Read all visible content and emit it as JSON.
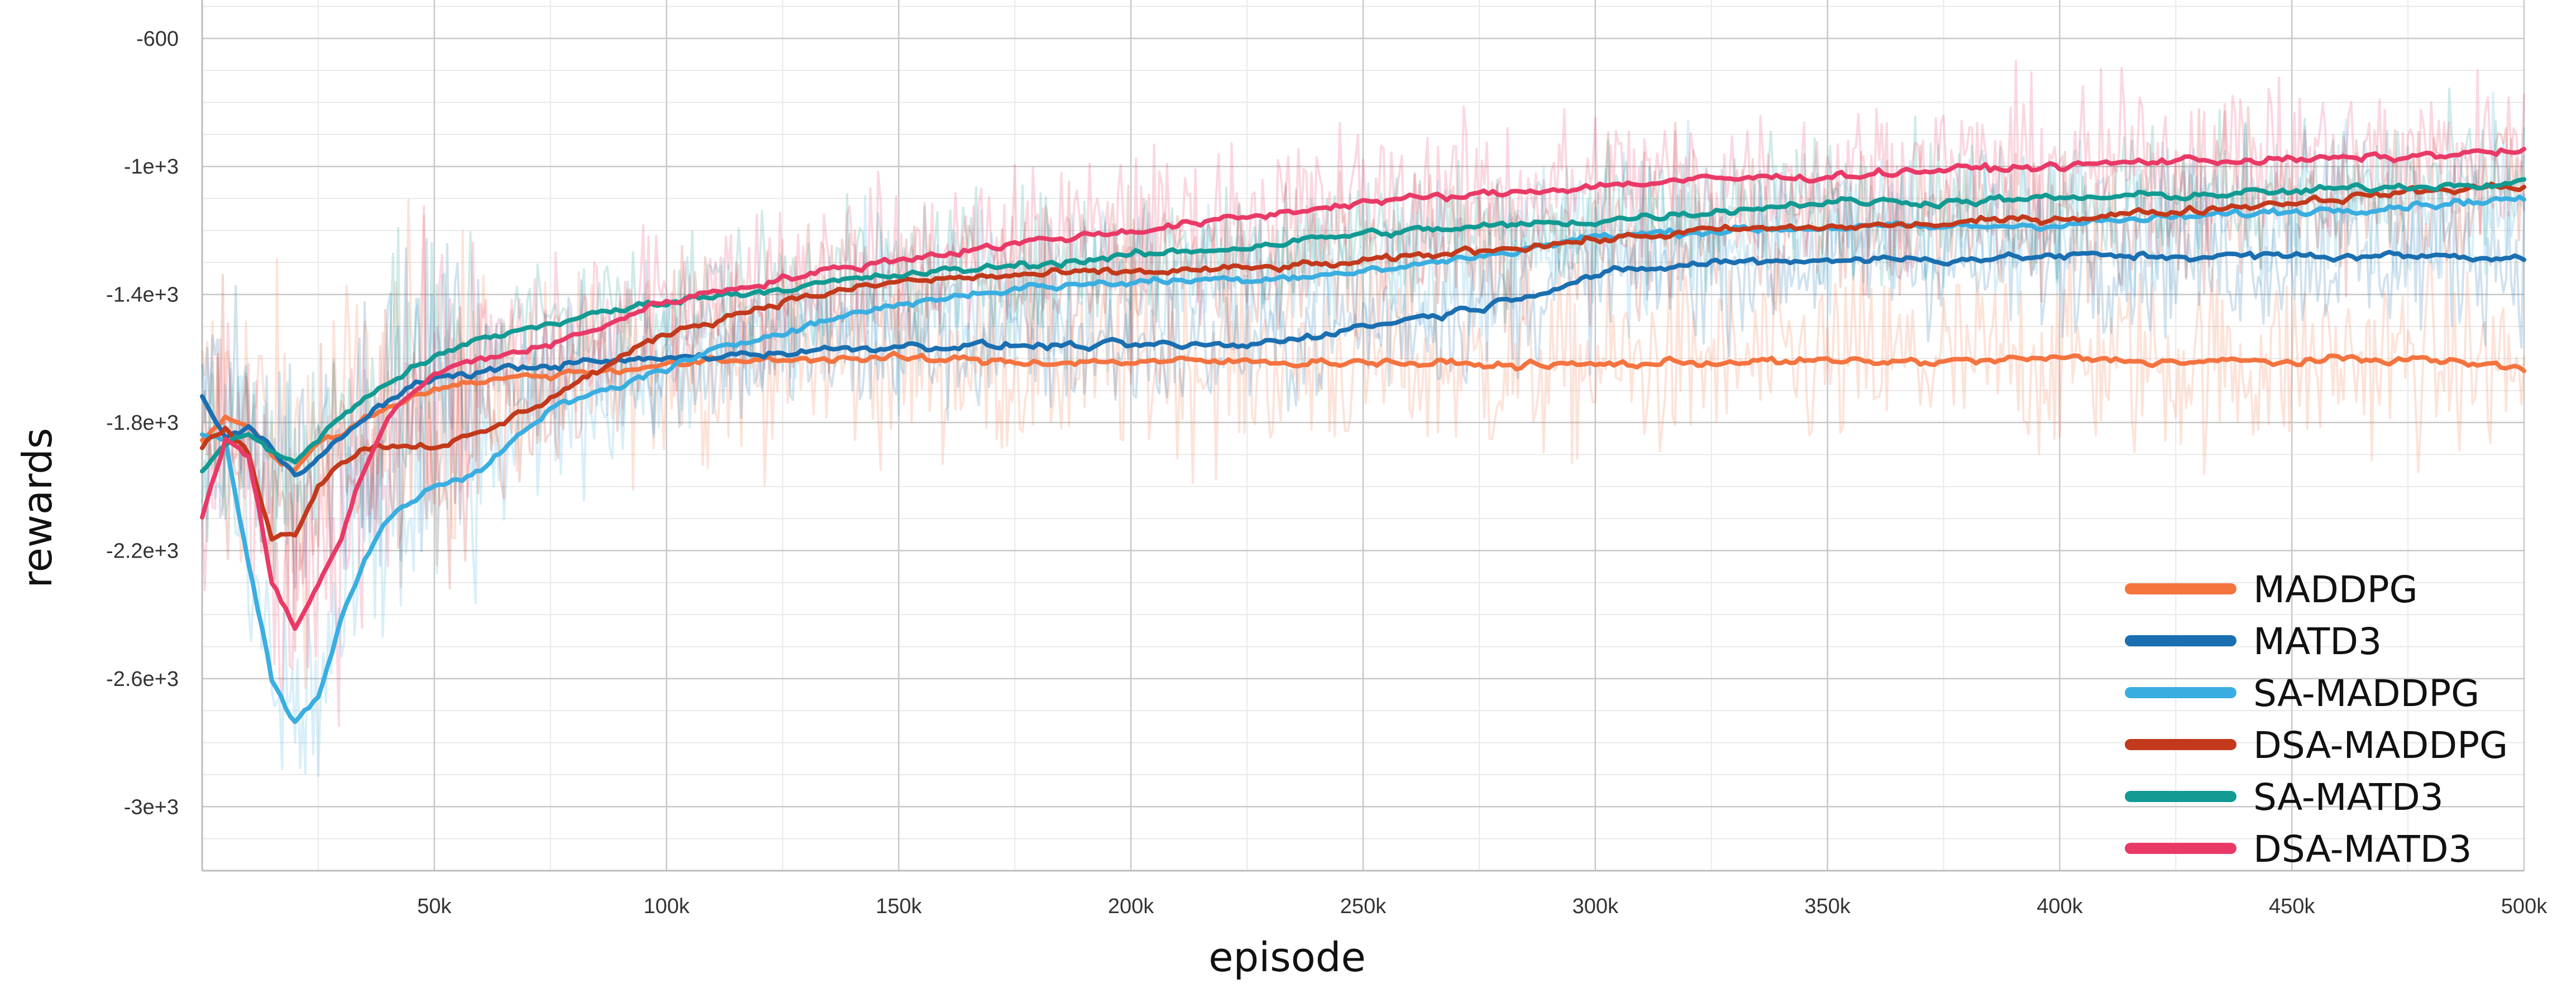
{
  "chart_data": {
    "type": "line",
    "title": "",
    "xlabel": "episode",
    "ylabel": "rewards",
    "xlim": [
      0,
      500000
    ],
    "ylim": [
      -3200,
      -480
    ],
    "x_ticks": [
      {
        "value": 50000,
        "label": "50k"
      },
      {
        "value": 100000,
        "label": "100k"
      },
      {
        "value": 150000,
        "label": "150k"
      },
      {
        "value": 200000,
        "label": "200k"
      },
      {
        "value": 250000,
        "label": "250k"
      },
      {
        "value": 300000,
        "label": "300k"
      },
      {
        "value": 350000,
        "label": "350k"
      },
      {
        "value": 400000,
        "label": "400k"
      },
      {
        "value": 450000,
        "label": "450k"
      },
      {
        "value": 500000,
        "label": "500k"
      }
    ],
    "y_ticks": [
      {
        "value": -600,
        "label": "-600"
      },
      {
        "value": -1000,
        "label": "-1e+3"
      },
      {
        "value": -1400,
        "label": "-1.4e+3"
      },
      {
        "value": -1800,
        "label": "-1.8e+3"
      },
      {
        "value": -2200,
        "label": "-2.2e+3"
      },
      {
        "value": -2600,
        "label": "-2.6e+3"
      },
      {
        "value": -3000,
        "label": "-3e+3"
      }
    ],
    "grid": true,
    "legend_position": "bottom-right",
    "x": [
      0,
      5000,
      10000,
      15000,
      20000,
      25000,
      30000,
      35000,
      40000,
      50000,
      60000,
      75000,
      100000,
      125000,
      150000,
      175000,
      200000,
      225000,
      250000,
      275000,
      300000,
      325000,
      350000,
      375000,
      400000,
      425000,
      450000,
      475000,
      500000
    ],
    "series": [
      {
        "name": "MADDPG",
        "color": "#f4733f",
        "values": [
          -1850,
          -1780,
          -1800,
          -1900,
          -1950,
          -1870,
          -1830,
          -1790,
          -1750,
          -1690,
          -1670,
          -1650,
          -1620,
          -1600,
          -1600,
          -1610,
          -1610,
          -1610,
          -1610,
          -1620,
          -1620,
          -1610,
          -1610,
          -1610,
          -1600,
          -1610,
          -1610,
          -1600,
          -1630
        ]
      },
      {
        "name": "MATD3",
        "color": "#1a6fb0",
        "values": [
          -1720,
          -1850,
          -1820,
          -1880,
          -1960,
          -1900,
          -1850,
          -1790,
          -1730,
          -1660,
          -1640,
          -1620,
          -1600,
          -1580,
          -1560,
          -1560,
          -1560,
          -1560,
          -1500,
          -1440,
          -1340,
          -1300,
          -1290,
          -1290,
          -1280,
          -1280,
          -1280,
          -1280,
          -1280
        ]
      },
      {
        "name": "SA-MADDPG",
        "color": "#3aaee0",
        "values": [
          -1850,
          -1850,
          -2250,
          -2600,
          -2740,
          -2650,
          -2420,
          -2230,
          -2100,
          -1990,
          -1950,
          -1760,
          -1630,
          -1510,
          -1430,
          -1380,
          -1360,
          -1350,
          -1330,
          -1280,
          -1220,
          -1200,
          -1190,
          -1190,
          -1180,
          -1160,
          -1140,
          -1120,
          -1100
        ]
      },
      {
        "name": "DSA-MADDPG",
        "color": "#c2391c",
        "values": [
          -1880,
          -1820,
          -1900,
          -2150,
          -2150,
          -1990,
          -1920,
          -1880,
          -1870,
          -1870,
          -1840,
          -1720,
          -1520,
          -1420,
          -1360,
          -1340,
          -1330,
          -1320,
          -1300,
          -1260,
          -1230,
          -1200,
          -1190,
          -1180,
          -1160,
          -1140,
          -1110,
          -1080,
          -1060
        ]
      },
      {
        "name": "SA-MATD3",
        "color": "#129a93",
        "values": [
          -1950,
          -1870,
          -1830,
          -1900,
          -1920,
          -1850,
          -1780,
          -1730,
          -1670,
          -1600,
          -1540,
          -1490,
          -1420,
          -1380,
          -1340,
          -1310,
          -1280,
          -1250,
          -1210,
          -1190,
          -1170,
          -1140,
          -1110,
          -1110,
          -1100,
          -1090,
          -1080,
          -1060,
          -1050
        ]
      },
      {
        "name": "DSA-MATD3",
        "color": "#e93a67",
        "values": [
          -2100,
          -1850,
          -1900,
          -2300,
          -2440,
          -2310,
          -2160,
          -1940,
          -1780,
          -1650,
          -1600,
          -1560,
          -1420,
          -1350,
          -1290,
          -1240,
          -1200,
          -1160,
          -1110,
          -1090,
          -1060,
          -1040,
          -1030,
          -1010,
          -1000,
          -980,
          -980,
          -970,
          -950
        ]
      }
    ]
  }
}
